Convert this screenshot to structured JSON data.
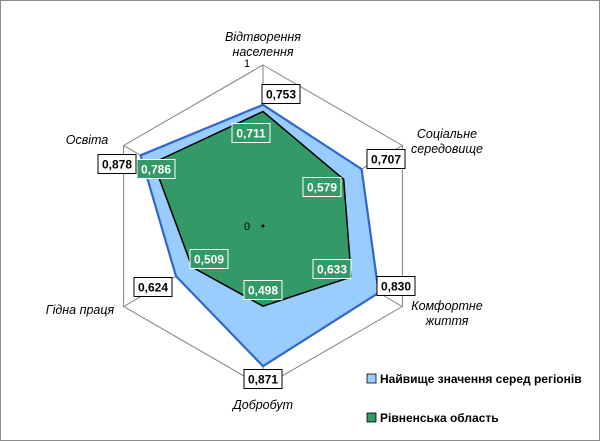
{
  "chart_data": {
    "type": "radar",
    "categories": [
      "Відтворення населення",
      "Соціальне середовище",
      "Комфортне життя",
      "Добробут",
      "Гідна праця",
      "Освіта"
    ],
    "category_lines": [
      [
        "Відтворення",
        "населення"
      ],
      [
        "Соціальне",
        "середовище"
      ],
      [
        "Комфортне",
        "життя"
      ],
      [
        "Добробут"
      ],
      [
        "Гідна праця"
      ],
      [
        "Освіта"
      ]
    ],
    "series": [
      {
        "name": "Найвище значення серед регіонів",
        "values": [
          0.753,
          0.707,
          0.83,
          0.871,
          0.624,
          0.878
        ],
        "labels": [
          "0,753",
          "0,707",
          "0,830",
          "0,871",
          "0,624",
          "0,878"
        ],
        "fill": "#99ccff",
        "stroke": "#3366cc"
      },
      {
        "name": "Рівненська область",
        "values": [
          0.711,
          0.579,
          0.633,
          0.498,
          0.509,
          0.786
        ],
        "labels": [
          "0,711",
          "0,579",
          "0,633",
          "0,498",
          "0,509",
          "0,786"
        ],
        "fill": "#339966",
        "stroke": "#000000"
      }
    ],
    "range": [
      0,
      1
    ],
    "tick_labels": [
      "0",
      "1"
    ],
    "gridlines": true,
    "legend_position": "bottom-right"
  }
}
